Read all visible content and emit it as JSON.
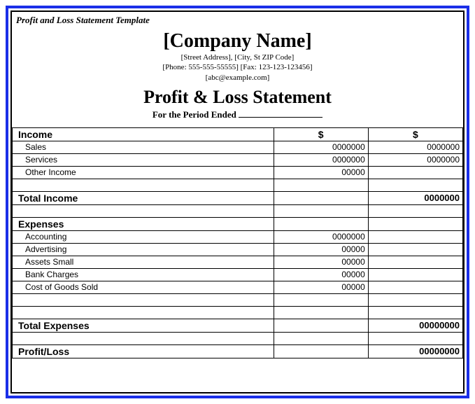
{
  "template_label": "Profit and Loss Statement Template",
  "header": {
    "company_name": "[Company Name]",
    "address": "[Street Address], [City, St ZIP Code]",
    "phone": "[Phone: 555-555-55555] [Fax: 123-123-123456]",
    "email": "[abc@example.com]",
    "statement_title": "Profit & Loss Statement",
    "period_label": "For the Period Ended"
  },
  "currency_symbol": "$",
  "income": {
    "header": "Income",
    "items": [
      {
        "label": "Sales",
        "amt1": "0000000",
        "amt2": "0000000"
      },
      {
        "label": "Services",
        "amt1": "0000000",
        "amt2": "0000000"
      },
      {
        "label": "Other Income",
        "amt1": "00000",
        "amt2": ""
      }
    ],
    "total_label": "Total Income",
    "total_value": "0000000"
  },
  "expenses": {
    "header": "Expenses",
    "items": [
      {
        "label": "Accounting",
        "amt1": "0000000",
        "amt2": ""
      },
      {
        "label": "Advertising",
        "amt1": "00000",
        "amt2": ""
      },
      {
        "label": "Assets Small",
        "amt1": "00000",
        "amt2": ""
      },
      {
        "label": "Bank Charges",
        "amt1": "00000",
        "amt2": ""
      },
      {
        "label": "Cost of Goods Sold",
        "amt1": "00000",
        "amt2": ""
      }
    ],
    "total_label": "Total Expenses",
    "total_value": "00000000"
  },
  "profit_loss": {
    "label": "Profit/Loss",
    "value": "00000000"
  },
  "styling": {
    "outer_border_color": "#1a2ee8",
    "inner_border_color": "#000000",
    "font_header": "Times New Roman",
    "font_body": "Arial",
    "col_widths_pct": [
      58,
      21,
      21
    ]
  }
}
